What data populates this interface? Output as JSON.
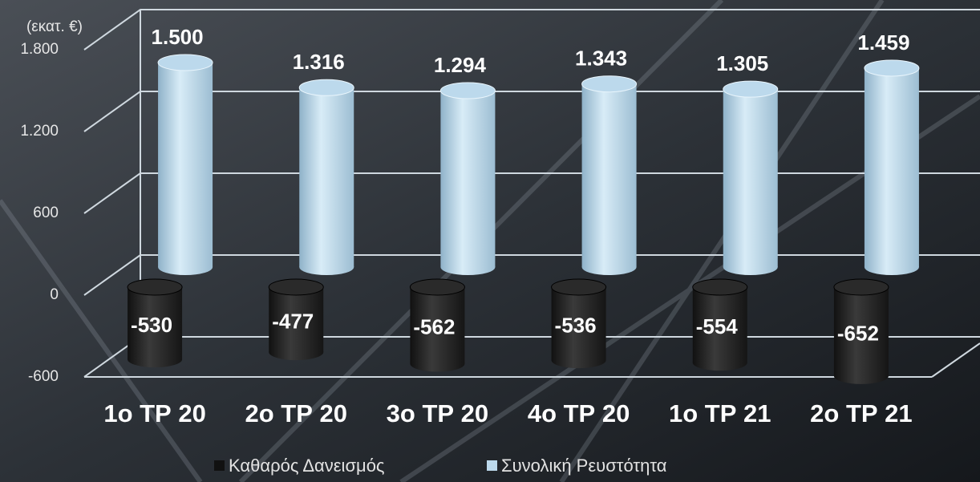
{
  "chart_data": {
    "type": "bar3d",
    "y_unit_label": "(εκατ. €)",
    "categories": [
      "1ο ΤΡ 20",
      "2ο ΤΡ 20",
      "3ο ΤΡ 20",
      "4ο ΤΡ 20",
      "1ο ΤΡ 21",
      "2ο ΤΡ 21"
    ],
    "series": [
      {
        "name": "Καθαρός Δανεισμός",
        "color": "#2a2a2a",
        "values": [
          -530,
          -477,
          -562,
          -536,
          -554,
          -652
        ],
        "value_labels": [
          "-530",
          "-477",
          "-562",
          "-536",
          "-554",
          "-652"
        ]
      },
      {
        "name": "Συνολική Ρευστότητα",
        "color": "#bcd9ec",
        "values": [
          1500,
          1316,
          1294,
          1343,
          1305,
          1459
        ],
        "value_labels": [
          "1.500",
          "1.316",
          "1.294",
          "1.343",
          "1.305",
          "1.459"
        ]
      }
    ],
    "ylim": [
      -600,
      1800
    ],
    "yticks": [
      -600,
      0,
      600,
      {
        "value": 1200,
        "label": "1.200"
      },
      {
        "value": 1800,
        "label": "1.800"
      }
    ],
    "grid": true
  }
}
